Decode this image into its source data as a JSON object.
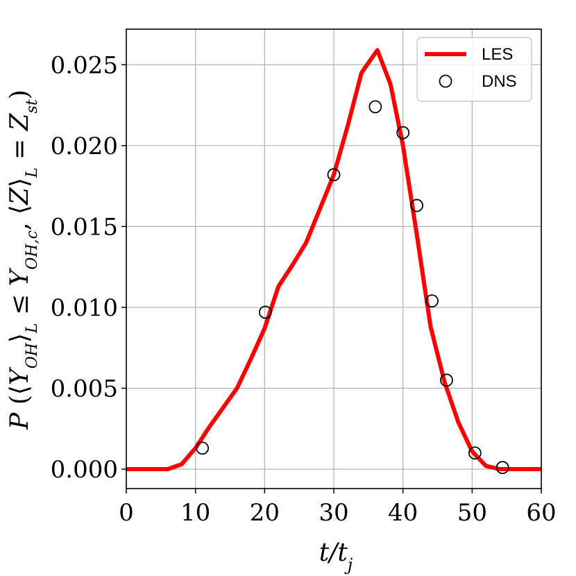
{
  "chart_data": {
    "type": "line",
    "xlabel": "t/t_j",
    "ylabel": "P(⟨Y_OH⟩_L ≤ Y_OH,c, ⟨Z⟩_L = Z_st)",
    "xlim": [
      0,
      60
    ],
    "ylim": [
      -0.0012,
      0.0272
    ],
    "xticks": [
      0,
      10,
      20,
      30,
      40,
      50,
      60
    ],
    "yticks": [
      0.0,
      0.005,
      0.01,
      0.015,
      0.02,
      0.025
    ],
    "xtick_labels": [
      "0",
      "10",
      "20",
      "30",
      "40",
      "50",
      "60"
    ],
    "ytick_labels": [
      "0.000",
      "0.005",
      "0.010",
      "0.015",
      "0.020",
      "0.025"
    ],
    "grid": true,
    "legend_position": "top-right",
    "series": [
      {
        "name": "LES",
        "style": "line",
        "color": "#ff0000",
        "x": [
          0,
          6,
          8,
          10,
          12,
          14,
          16,
          18,
          20,
          22,
          24,
          26,
          28,
          30,
          32,
          34,
          36.3,
          38.2,
          40,
          42,
          44,
          46,
          48,
          50,
          52,
          54,
          56,
          58,
          60
        ],
        "y": [
          0,
          0,
          0.0003,
          0.0013,
          0.0026,
          0.0038,
          0.005,
          0.0068,
          0.0087,
          0.0113,
          0.0126,
          0.014,
          0.0161,
          0.0182,
          0.0212,
          0.0245,
          0.0259,
          0.0238,
          0.02,
          0.0145,
          0.0088,
          0.0054,
          0.0029,
          0.0011,
          0.0002,
          0,
          0,
          0,
          0
        ]
      },
      {
        "name": "DNS",
        "style": "markers",
        "marker": "open-circle",
        "color": "#000000",
        "x": [
          11,
          20.1,
          30,
          36,
          40,
          42,
          44.2,
          46.3,
          50.4,
          54.4
        ],
        "y": [
          0.0013,
          0.0097,
          0.0182,
          0.0224,
          0.0208,
          0.0163,
          0.0104,
          0.0055,
          0.001,
          0.0001
        ]
      }
    ]
  }
}
